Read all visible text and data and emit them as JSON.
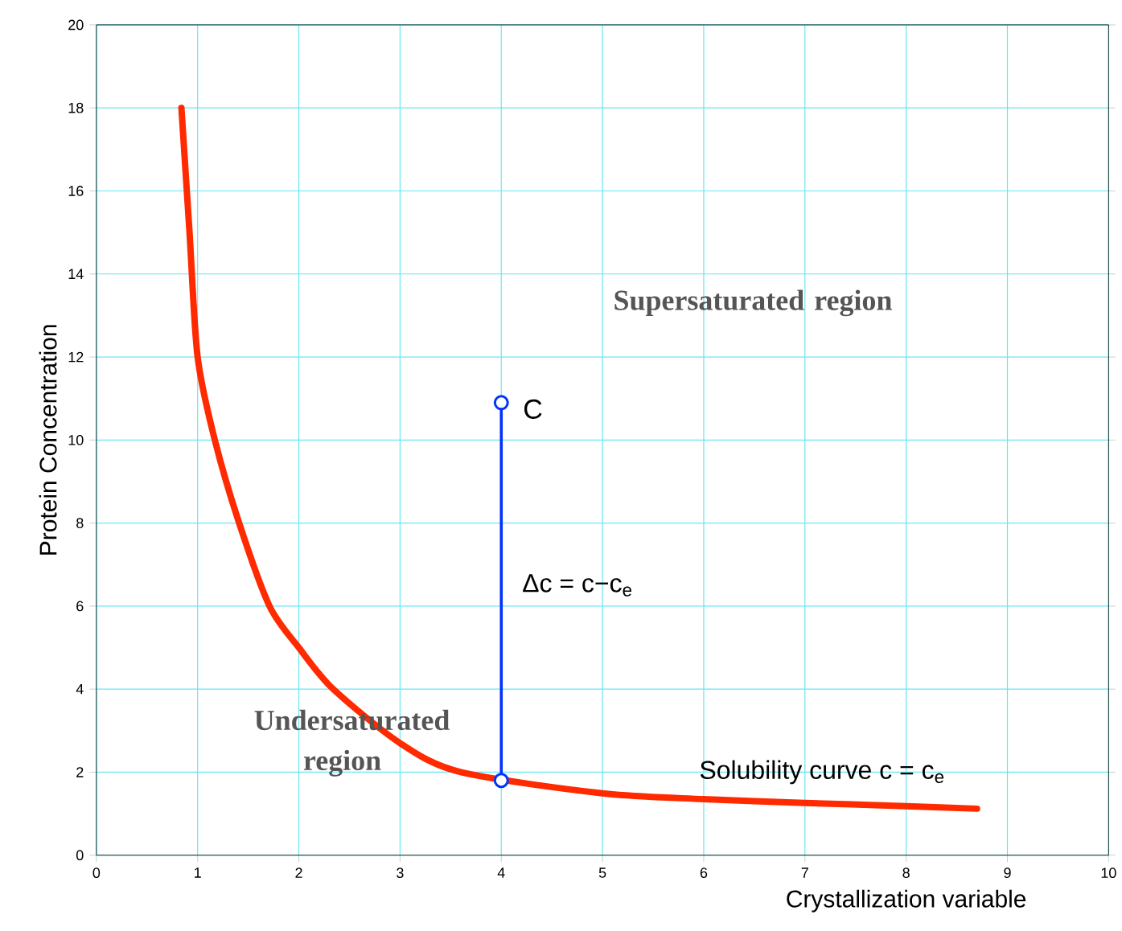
{
  "chart_data": {
    "type": "line",
    "xlabel": "Crystallization variable",
    "ylabel": "Protein Concentration",
    "xlim": [
      0,
      10
    ],
    "ylim": [
      0,
      20
    ],
    "xticks": [
      0,
      1,
      2,
      3,
      4,
      5,
      6,
      7,
      8,
      9,
      10
    ],
    "yticks": [
      0,
      2,
      4,
      6,
      8,
      10,
      12,
      14,
      16,
      18,
      20
    ],
    "grid": true,
    "series": [
      {
        "color": "#ff2a00",
        "marker": "none",
        "x": [
          0.84,
          0.92,
          1.0,
          1.17,
          1.41,
          1.71,
          2.0,
          2.34,
          3.0,
          3.6,
          5.0,
          6.0,
          7.0,
          8.0,
          8.7
        ],
        "values": [
          18,
          15,
          12,
          10,
          8,
          6,
          5,
          4,
          2.7,
          2.0,
          1.49,
          1.35,
          1.26,
          1.18,
          1.12
        ]
      },
      {
        "color": "#0033ff",
        "marker": "circle",
        "x": [
          4,
          4
        ],
        "values": [
          1.8,
          10.9
        ]
      }
    ],
    "annotations": [
      {
        "text": "C",
        "x": 4,
        "y": 10.9
      },
      "Δc = c−c$_{e}$",
      "Solubility curve c = c$_{e}$",
      "Supersaturated region",
      "Undersaturated region"
    ]
  }
}
